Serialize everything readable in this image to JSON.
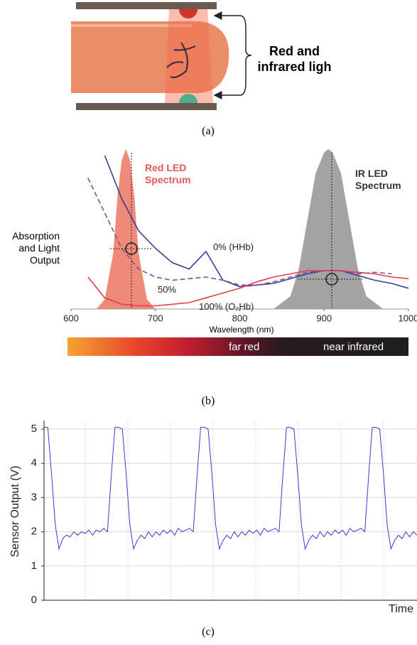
{
  "figure_a": {
    "label": "Red and infrared ligh",
    "caption": "(a)"
  },
  "chart_data": [
    {
      "type": "line",
      "caption": "(b)",
      "xlabel": "Wavelength (nm)",
      "ylabel": "Absorption and Light Output",
      "xlim": [
        600,
        1000
      ],
      "xticks": [
        600,
        700,
        800,
        900,
        1000
      ],
      "ylim": [
        0,
        1
      ],
      "colorbar_labels": [
        "far red",
        "near infrared"
      ],
      "series": [
        {
          "name": "Red LED Spectrum",
          "color": "#f08a78",
          "style": "area",
          "x": [
            630,
            640,
            650,
            655,
            660,
            665,
            670,
            675,
            680,
            690,
            700
          ],
          "values": [
            0,
            0.06,
            0.35,
            0.7,
            0.93,
            1.0,
            0.93,
            0.7,
            0.35,
            0.06,
            0
          ]
        },
        {
          "name": "IR LED Spectrum",
          "color": "#a3a3a3",
          "style": "area",
          "x": [
            840,
            860,
            870,
            880,
            890,
            900,
            905,
            910,
            920,
            930,
            940,
            950,
            970
          ],
          "values": [
            0,
            0.08,
            0.25,
            0.55,
            0.85,
            0.98,
            1.0,
            0.98,
            0.85,
            0.55,
            0.25,
            0.08,
            0
          ]
        },
        {
          "name": "0% (HHb)",
          "color": "#3b3f96",
          "style": "solid",
          "x": [
            600,
            620,
            640,
            660,
            680,
            700,
            720,
            740,
            760,
            780,
            800,
            820,
            840,
            860,
            880,
            900,
            920,
            940,
            960,
            980,
            1000
          ],
          "values": [
            null,
            null,
            0.96,
            0.69,
            0.49,
            0.38,
            0.29,
            0.25,
            0.36,
            0.18,
            0.14,
            0.15,
            0.16,
            0.19,
            0.22,
            0.24,
            0.24,
            0.21,
            0.18,
            0.16,
            0.13
          ]
        },
        {
          "name": "50%",
          "color": "#8a4a9a",
          "style": "dashed",
          "x": [
            600,
            620,
            640,
            660,
            680,
            700,
            720,
            740,
            760,
            780,
            800,
            820,
            840,
            860,
            880,
            900,
            920,
            940,
            960,
            980,
            1000
          ],
          "values": [
            null,
            0.82,
            0.6,
            0.38,
            0.25,
            0.2,
            0.18,
            0.19,
            0.2,
            0.18,
            0.15,
            0.15,
            0.17,
            0.2,
            0.23,
            0.24,
            0.24,
            0.22,
            0.23,
            0.22,
            null
          ]
        },
        {
          "name": "100% (O₂Hb)",
          "color": "#e0404a",
          "style": "solid",
          "x": [
            600,
            620,
            640,
            660,
            680,
            700,
            720,
            740,
            760,
            780,
            800,
            820,
            840,
            860,
            880,
            900,
            920,
            940,
            960,
            980,
            1000
          ],
          "values": [
            null,
            0.2,
            0.07,
            0.03,
            0.02,
            0.02,
            0.03,
            0.04,
            0.07,
            0.1,
            0.13,
            0.17,
            0.2,
            0.22,
            0.24,
            0.24,
            0.24,
            0.23,
            0.22,
            0.2,
            0.19
          ]
        }
      ]
    },
    {
      "type": "line",
      "caption": "(c)",
      "xlabel": "Time",
      "ylabel": "Sensor Output (V)",
      "xlim": [
        0,
        100
      ],
      "ylim": [
        0,
        5.25
      ],
      "yticks": [
        0,
        1,
        2,
        3,
        4,
        5
      ],
      "grid": true,
      "series": [
        {
          "color": "#3a3ad0",
          "style": "solid",
          "x": [
            0,
            1,
            2,
            3,
            4,
            5,
            6,
            7,
            8,
            9,
            10,
            11,
            12,
            13,
            14,
            15,
            16,
            17,
            18,
            19,
            20,
            21,
            22,
            23,
            24,
            25,
            26,
            27,
            28,
            29,
            30,
            31,
            32,
            33,
            34,
            35,
            36,
            37,
            38,
            39,
            40,
            41,
            42,
            43,
            44,
            45,
            46,
            47,
            48,
            49,
            50,
            51,
            52,
            53,
            54,
            55,
            56,
            57,
            58,
            59,
            60,
            61,
            62,
            63,
            64,
            65,
            66,
            67,
            68,
            69,
            70,
            71,
            72,
            73,
            74,
            75,
            76,
            77,
            78,
            79,
            80,
            81,
            82,
            83,
            84,
            85,
            86,
            87,
            88,
            89,
            90,
            91,
            92,
            93,
            94,
            95,
            96,
            97,
            98,
            99,
            100
          ],
          "values": [
            5.05,
            5.05,
            3.7,
            2.2,
            1.5,
            1.8,
            1.9,
            1.85,
            2.0,
            1.9,
            2.0,
            1.95,
            2.05,
            1.9,
            2.05,
            2.0,
            2.1,
            2.0,
            3.6,
            5.05,
            5.05,
            5.0,
            3.7,
            2.2,
            1.5,
            1.75,
            1.9,
            1.8,
            2.0,
            1.85,
            2.0,
            1.9,
            2.05,
            1.95,
            2.05,
            1.9,
            2.1,
            2.0,
            2.05,
            2.1,
            2.0,
            3.6,
            5.05,
            5.05,
            5.0,
            3.7,
            2.2,
            1.5,
            1.75,
            1.9,
            1.8,
            2.0,
            1.85,
            2.0,
            1.9,
            2.05,
            1.95,
            2.05,
            1.9,
            2.1,
            2.0,
            2.05,
            2.1,
            2.0,
            3.6,
            5.05,
            5.05,
            5.0,
            3.7,
            2.2,
            1.5,
            1.75,
            1.9,
            1.8,
            2.0,
            1.85,
            2.0,
            1.9,
            2.05,
            1.95,
            2.05,
            1.9,
            2.1,
            2.0,
            2.05,
            2.1,
            2.0,
            3.6,
            5.05,
            5.05,
            5.0,
            3.7,
            2.2,
            1.5,
            1.75,
            1.9,
            1.8,
            2.0,
            1.85,
            2.0,
            1.9
          ]
        }
      ]
    }
  ]
}
